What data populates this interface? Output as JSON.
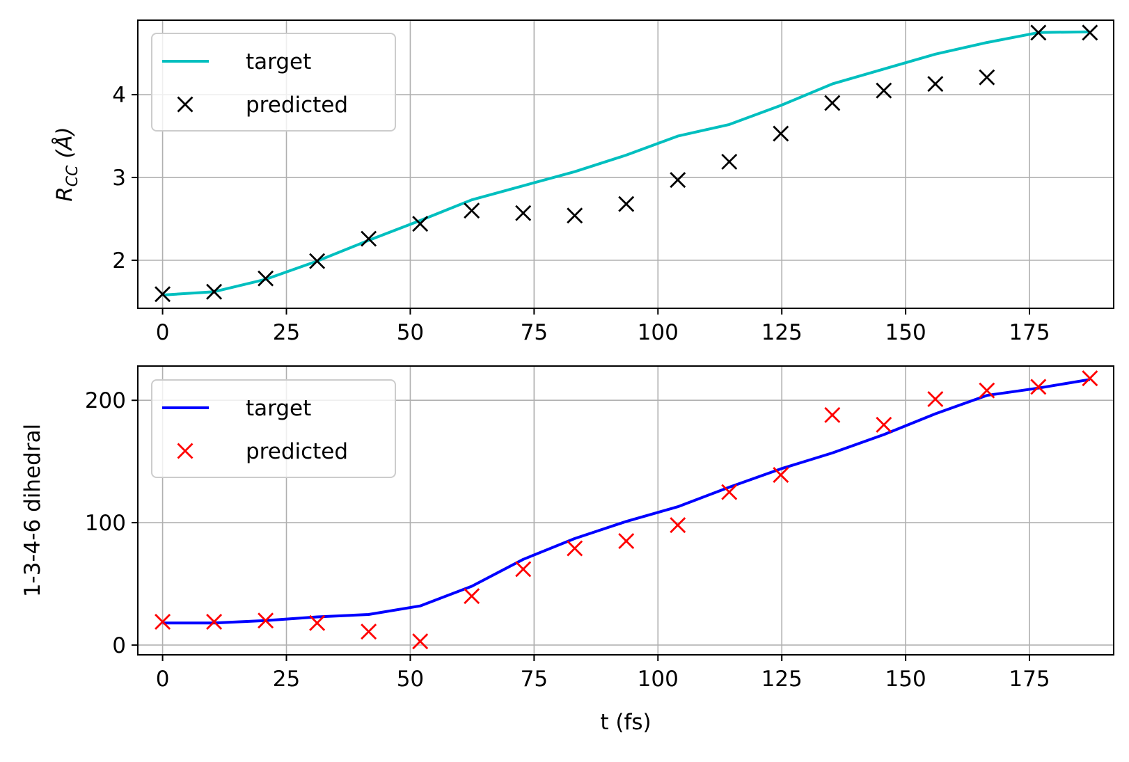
{
  "chart_data": [
    {
      "type": "line",
      "xlabel": "",
      "ylabel_main": "R",
      "ylabel_sub": "CC",
      "ylabel_unit": "(Å)",
      "xlim": [
        -5,
        192
      ],
      "ylim": [
        1.42,
        4.9
      ],
      "xticks": [
        0,
        25,
        50,
        75,
        100,
        125,
        150,
        175
      ],
      "yticks": [
        2,
        3,
        4
      ],
      "grid": true,
      "legend": "top-left",
      "series": [
        {
          "name": "target",
          "style": "line",
          "color": "#00bfbf",
          "x": [
            0,
            10.4,
            20.8,
            31.2,
            41.6,
            52,
            62.4,
            72.8,
            83.2,
            93.6,
            104,
            114.4,
            124.8,
            135.2,
            145.6,
            156,
            166.4,
            176.8,
            187.2
          ],
          "y": [
            1.58,
            1.62,
            1.77,
            1.99,
            2.24,
            2.48,
            2.73,
            2.9,
            3.07,
            3.27,
            3.5,
            3.64,
            3.87,
            4.13,
            4.31,
            4.49,
            4.63,
            4.75,
            4.76
          ]
        },
        {
          "name": "predicted",
          "style": "marker",
          "color": "#000000",
          "x": [
            0,
            10.4,
            20.8,
            31.2,
            41.6,
            52,
            62.4,
            72.8,
            83.2,
            93.6,
            104,
            114.4,
            124.8,
            135.2,
            145.6,
            156,
            166.4,
            176.8,
            187.2
          ],
          "y": [
            1.59,
            1.62,
            1.78,
            1.99,
            2.26,
            2.44,
            2.6,
            2.57,
            2.54,
            2.68,
            2.97,
            3.19,
            3.53,
            3.9,
            4.05,
            4.13,
            4.21,
            4.75,
            4.75
          ]
        }
      ]
    },
    {
      "type": "line",
      "xlabel": "t (fs)",
      "ylabel": "1-3-4-6 dihedral",
      "xlim": [
        -5,
        192
      ],
      "ylim": [
        -8,
        228
      ],
      "xticks": [
        0,
        25,
        50,
        75,
        100,
        125,
        150,
        175
      ],
      "yticks": [
        0,
        100,
        200
      ],
      "grid": true,
      "legend": "top-left",
      "series": [
        {
          "name": "target",
          "style": "line",
          "color": "#0000ff",
          "x": [
            0,
            10.4,
            20.8,
            31.2,
            41.6,
            52,
            62.4,
            72.8,
            83.2,
            93.6,
            104,
            114.4,
            124.8,
            135.2,
            145.6,
            156,
            166.4,
            176.8,
            187.2
          ],
          "y": [
            18,
            18,
            20,
            23,
            25,
            32,
            48,
            70,
            87,
            101,
            113,
            129,
            144,
            157,
            172,
            189,
            204,
            210,
            217
          ]
        },
        {
          "name": "predicted",
          "style": "marker",
          "color": "#ff0000",
          "x": [
            0,
            10.4,
            20.8,
            31.2,
            41.6,
            52,
            62.4,
            72.8,
            83.2,
            93.6,
            104,
            114.4,
            124.8,
            135.2,
            145.6,
            156,
            166.4,
            176.8,
            187.2
          ],
          "y": [
            19,
            19,
            20,
            18,
            11,
            3,
            40,
            62,
            79,
            85,
            98,
            125,
            139,
            188,
            180,
            201,
            208,
            211,
            218
          ]
        }
      ]
    }
  ]
}
